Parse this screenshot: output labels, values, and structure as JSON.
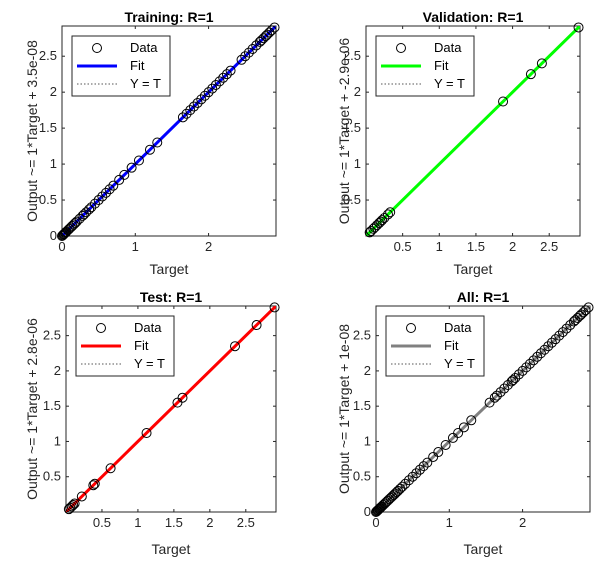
{
  "chart_data": [
    {
      "type": "scatter",
      "title": "Training: R=1",
      "xlabel": "Target",
      "ylabel": "Output ~= 1*Target + 3.5e-08",
      "xlim": [
        0,
        2.92
      ],
      "ylim": [
        0,
        2.92
      ],
      "xticks": [
        0,
        1,
        2
      ],
      "yticks": [
        0,
        0.5,
        1,
        1.5,
        2,
        2.5
      ],
      "fit_color": "#0000ff",
      "marker_color": "#0000ff",
      "legend": {
        "position": "top-left",
        "entries": [
          "Data",
          "Fit",
          "Y = T"
        ]
      },
      "fit": {
        "slope": 1,
        "intercept": 3.5e-08
      },
      "points": [
        0.0,
        0.01,
        0.02,
        0.03,
        0.04,
        0.05,
        0.06,
        0.08,
        0.1,
        0.12,
        0.14,
        0.16,
        0.18,
        0.2,
        0.24,
        0.28,
        0.3,
        0.33,
        0.37,
        0.4,
        0.45,
        0.5,
        0.55,
        0.6,
        0.65,
        0.7,
        0.78,
        0.85,
        0.95,
        1.05,
        1.2,
        1.3,
        1.65,
        1.7,
        1.75,
        1.8,
        1.85,
        1.9,
        1.95,
        2.0,
        2.05,
        2.1,
        2.15,
        2.2,
        2.25,
        2.3,
        2.45,
        2.5,
        2.55,
        2.6,
        2.65,
        2.7,
        2.72,
        2.75,
        2.78,
        2.8,
        2.83,
        2.86,
        2.9
      ]
    },
    {
      "type": "scatter",
      "title": "Validation: R=1",
      "xlabel": "Target",
      "ylabel": "Output ~= 1*Target + -2.9e-06",
      "xlim": [
        0,
        2.92
      ],
      "ylim": [
        0,
        2.92
      ],
      "xticks": [
        0.5,
        1,
        1.5,
        2,
        2.5
      ],
      "yticks": [
        0.5,
        1,
        1.5,
        2,
        2.5
      ],
      "fit_color": "#00ff00",
      "marker_color": "#00c800",
      "legend": {
        "position": "top-left",
        "entries": [
          "Data",
          "Fit",
          "Y = T"
        ]
      },
      "fit": {
        "slope": 1,
        "intercept": -2.9e-06
      },
      "points": [
        0.05,
        0.07,
        0.1,
        0.12,
        0.15,
        0.18,
        0.2,
        0.22,
        0.25,
        0.3,
        0.33,
        1.87,
        2.25,
        2.4,
        2.9
      ]
    },
    {
      "type": "scatter",
      "title": "Test: R=1",
      "xlabel": "Target",
      "ylabel": "Output ~= 1*Target + 2.8e-06",
      "xlim": [
        0,
        2.92
      ],
      "ylim": [
        0,
        2.92
      ],
      "xticks": [
        0.5,
        1,
        1.5,
        2,
        2.5
      ],
      "yticks": [
        0.5,
        1,
        1.5,
        2,
        2.5
      ],
      "fit_color": "#ff0000",
      "marker_color": "#ff0000",
      "legend": {
        "position": "top-left",
        "entries": [
          "Data",
          "Fit",
          "Y = T"
        ]
      },
      "fit": {
        "slope": 1,
        "intercept": 2.8e-06
      },
      "points": [
        0.04,
        0.06,
        0.08,
        0.1,
        0.12,
        0.22,
        0.38,
        0.4,
        0.62,
        1.12,
        1.55,
        1.62,
        2.35,
        2.65,
        2.9
      ]
    },
    {
      "type": "scatter",
      "title": "All: R=1",
      "xlabel": "Target",
      "ylabel": "Output ~= 1*Target + 1e-08",
      "xlim": [
        0,
        2.92
      ],
      "ylim": [
        0,
        2.92
      ],
      "xticks": [
        0,
        1,
        2
      ],
      "yticks": [
        0,
        0.5,
        1,
        1.5,
        2,
        2.5
      ],
      "fit_color": "#808080",
      "marker_color": "#000000",
      "legend": {
        "position": "top-left",
        "entries": [
          "Data",
          "Fit",
          "Y = T"
        ]
      },
      "fit": {
        "slope": 1,
        "intercept": 1e-08
      },
      "points": [
        0.0,
        0.01,
        0.02,
        0.03,
        0.04,
        0.05,
        0.06,
        0.07,
        0.08,
        0.1,
        0.12,
        0.14,
        0.16,
        0.18,
        0.2,
        0.22,
        0.24,
        0.26,
        0.28,
        0.3,
        0.33,
        0.36,
        0.4,
        0.45,
        0.5,
        0.55,
        0.6,
        0.65,
        0.7,
        0.78,
        0.85,
        0.95,
        1.05,
        1.12,
        1.2,
        1.3,
        1.55,
        1.62,
        1.65,
        1.7,
        1.75,
        1.8,
        1.85,
        1.87,
        1.9,
        1.95,
        2.0,
        2.05,
        2.1,
        2.15,
        2.2,
        2.25,
        2.3,
        2.35,
        2.4,
        2.45,
        2.5,
        2.55,
        2.6,
        2.65,
        2.7,
        2.72,
        2.75,
        2.78,
        2.8,
        2.83,
        2.86,
        2.9
      ]
    }
  ]
}
